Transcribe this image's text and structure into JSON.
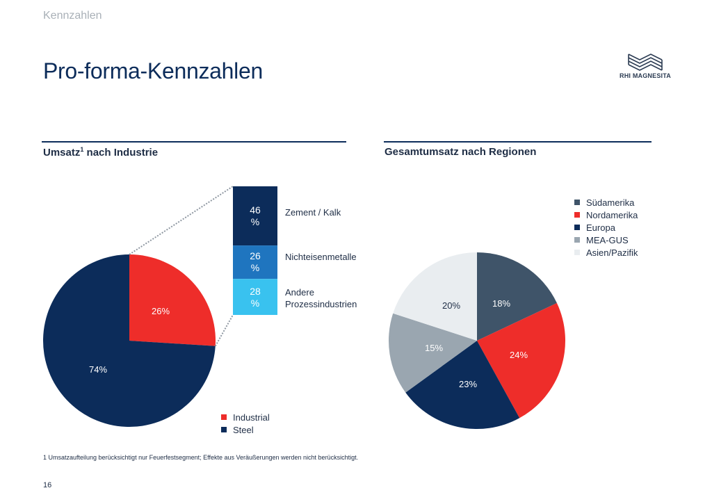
{
  "header": {
    "section": "Kennzahlen",
    "title": "Pro-forma-Kennzahlen",
    "logo_text": "RHI MAGNESITA"
  },
  "colors": {
    "steel": "#0c2c5a",
    "industrial": "#ee2d2a",
    "zement": "#0c2c5a",
    "nichteisen": "#1f75bf",
    "andere": "#39c2ef",
    "suedamerika": "#3f5469",
    "nordamerika": "#ee2d2a",
    "europa": "#0c2c5a",
    "mea_gus": "#9aa6b0",
    "asien": "#e9edf0"
  },
  "chart_data": [
    {
      "type": "pie",
      "title": "Umsatz",
      "title_sup": "1",
      "title_rest": " nach Industrie",
      "slices": [
        {
          "name": "Industrial",
          "value": 26,
          "label": "26%"
        },
        {
          "name": "Steel",
          "value": 74,
          "label": "74%"
        }
      ],
      "legend": [
        "Industrial",
        "Steel"
      ],
      "breakdown": {
        "type": "stacked_bar",
        "of": "Industrial",
        "segments": [
          {
            "name": "Zement / Kalk",
            "value": 46,
            "label_value": "46",
            "label_unit": "%"
          },
          {
            "name": "Nichteisenmetalle",
            "value": 26,
            "label_value": "26",
            "label_unit": "%"
          },
          {
            "name": "Andere Prozessindustrien",
            "name_line1": "Andere",
            "name_line2": "Prozessindustrien",
            "value": 28,
            "label_value": "28",
            "label_unit": "%"
          }
        ]
      }
    },
    {
      "type": "pie",
      "title": "Gesamtumsatz nach Regionen",
      "slices": [
        {
          "name": "Südamerika",
          "value": 18,
          "label": "18%"
        },
        {
          "name": "Nordamerika",
          "value": 24,
          "label": "24%"
        },
        {
          "name": "Europa",
          "value": 23,
          "label": "23%"
        },
        {
          "name": "MEA-GUS",
          "value": 15,
          "label": "15%"
        },
        {
          "name": "Asien/Pazifik",
          "value": 20,
          "label": "20%"
        }
      ],
      "legend": [
        "Südamerika",
        "Nordamerika",
        "Europa",
        "MEA-GUS",
        "Asien/Pazifik"
      ]
    }
  ],
  "footnote": "1 Umsatzaufteilung berücksichtigt nur Feuerfestsegment; Effekte aus Veräußerungen werden nicht berücksichtigt.",
  "page_number": "16"
}
